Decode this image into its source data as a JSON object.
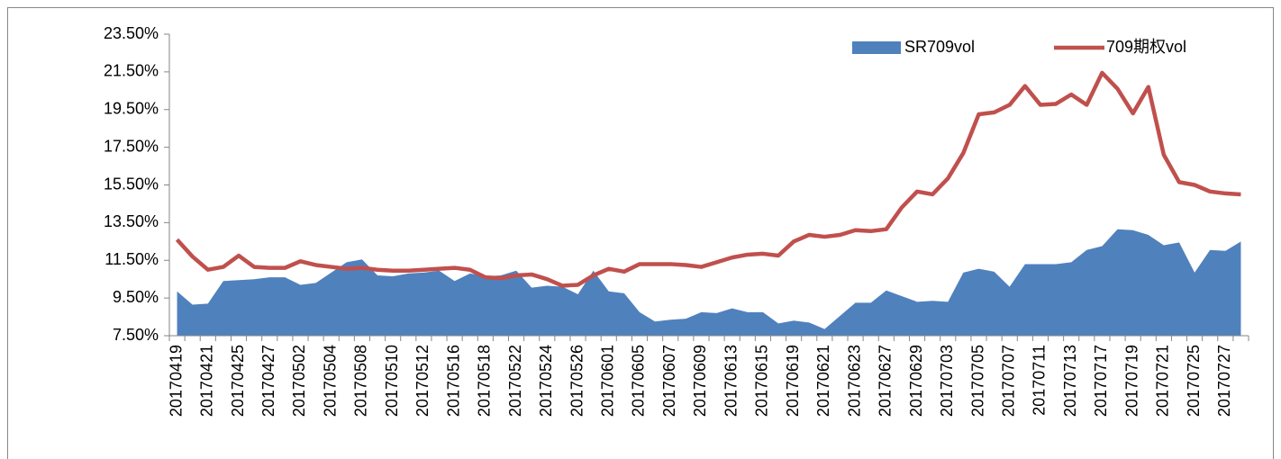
{
  "chart_data": {
    "type": "combo",
    "categories": [
      "20170419",
      null,
      "20170421",
      null,
      "20170425",
      null,
      "20170427",
      null,
      "20170502",
      null,
      "20170504",
      null,
      "20170508",
      null,
      "20170510",
      null,
      "20170512",
      null,
      "20170516",
      null,
      "20170518",
      null,
      "20170522",
      null,
      "20170524",
      null,
      "20170526",
      null,
      "20170601",
      null,
      "20170605",
      null,
      "20170607",
      null,
      "20170609",
      null,
      "20170613",
      null,
      "20170615",
      null,
      "20170619",
      null,
      "20170621",
      null,
      "20170623",
      null,
      "20170627",
      null,
      "20170629",
      null,
      "20170703",
      null,
      "20170705",
      null,
      "20170707",
      null,
      "20170711",
      null,
      "20170713",
      null,
      "20170717",
      null,
      "20170719",
      null,
      "20170721",
      null,
      "20170725",
      null,
      "20170727",
      null
    ],
    "series": [
      {
        "name": "SR709vol",
        "type": "area",
        "color": "#4f81bd",
        "values": [
          9.85,
          9.15,
          9.2,
          10.4,
          10.45,
          10.5,
          10.6,
          10.6,
          10.2,
          10.3,
          10.85,
          11.4,
          11.55,
          10.7,
          10.65,
          10.8,
          10.85,
          10.95,
          10.4,
          10.8,
          10.65,
          10.7,
          10.95,
          10.05,
          10.15,
          10.1,
          9.7,
          10.95,
          9.85,
          9.75,
          8.75,
          8.25,
          8.35,
          8.4,
          8.75,
          8.7,
          8.95,
          8.75,
          8.75,
          8.15,
          8.3,
          8.2,
          7.85,
          8.55,
          9.25,
          9.25,
          9.9,
          9.6,
          9.3,
          9.35,
          9.3,
          10.85,
          11.05,
          10.9,
          10.1,
          11.3,
          11.3,
          11.3,
          11.4,
          12.05,
          12.25,
          13.15,
          13.1,
          12.85,
          12.3,
          12.45,
          10.85,
          12.05,
          12.0,
          12.5
        ]
      },
      {
        "name": "709期权vol",
        "type": "line",
        "color": "#c0504d",
        "values": [
          12.6,
          11.7,
          11.0,
          11.15,
          11.75,
          11.15,
          11.1,
          11.1,
          11.45,
          11.25,
          11.15,
          11.05,
          11.1,
          11.0,
          10.95,
          10.95,
          11.0,
          11.05,
          11.1,
          11.0,
          10.6,
          10.55,
          10.7,
          10.75,
          10.5,
          10.15,
          10.2,
          10.7,
          11.05,
          10.9,
          11.3,
          11.3,
          11.3,
          11.25,
          11.15,
          11.4,
          11.65,
          11.8,
          11.85,
          11.75,
          12.5,
          12.85,
          12.75,
          12.85,
          13.1,
          13.05,
          13.15,
          14.3,
          15.15,
          15.0,
          15.85,
          17.2,
          19.25,
          19.35,
          19.75,
          20.75,
          19.75,
          19.8,
          20.3,
          19.75,
          21.45,
          20.6,
          19.3,
          20.7,
          17.1,
          15.65,
          15.5,
          15.15,
          15.05,
          15.0
        ]
      }
    ],
    "ylim": [
      7.5,
      23.5
    ],
    "yticks": [
      {
        "value": 7.5,
        "label": "7.50%"
      },
      {
        "value": 9.5,
        "label": "9.50%"
      },
      {
        "value": 11.5,
        "label": "11.50%"
      },
      {
        "value": 13.5,
        "label": "13.50%"
      },
      {
        "value": 15.5,
        "label": "15.50%"
      },
      {
        "value": 17.5,
        "label": "17.50%"
      },
      {
        "value": 19.5,
        "label": "19.50%"
      },
      {
        "value": 21.5,
        "label": "21.50%"
      },
      {
        "value": 23.5,
        "label": "23.50%"
      }
    ],
    "grid": false,
    "legend": "top-right"
  }
}
